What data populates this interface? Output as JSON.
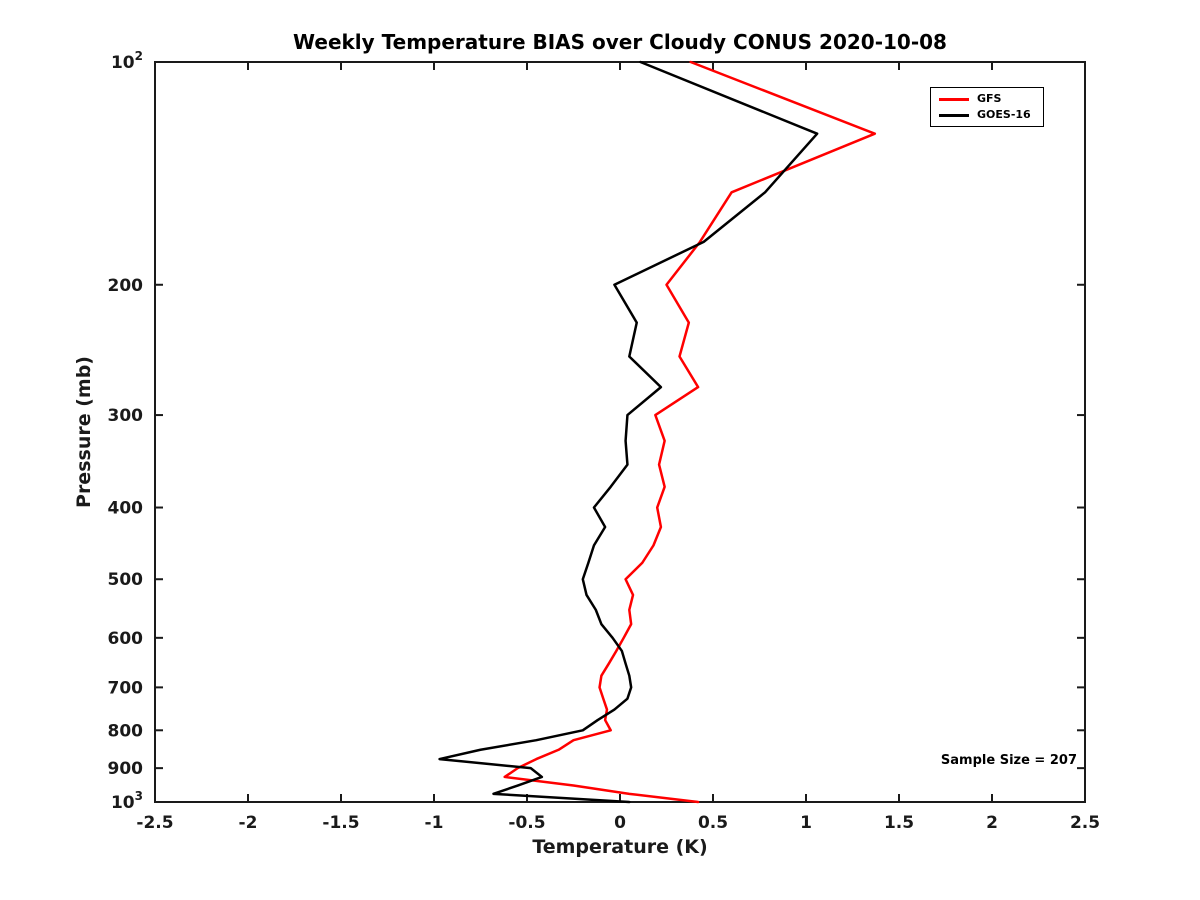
{
  "chart_data": {
    "type": "line",
    "title": "Weekly Temperature BIAS over Cloudy CONUS 2020-10-08",
    "xlabel": "Temperature (K)",
    "ylabel": "Pressure (mb)",
    "annotation": "Sample Size = 207",
    "xlim": [
      -2.5,
      2.5
    ],
    "ylim": [
      100,
      1000
    ],
    "y_scale": "log",
    "y_direction": "increasing-downward",
    "grid": false,
    "legend_position": "top-right-inside",
    "axis_color": "#1a1a1a",
    "line_width": 2.5,
    "x_ticks": [
      "-2.5",
      "-2",
      "-1.5",
      "-1",
      "-0.5",
      "0",
      "0.5",
      "1",
      "1.5",
      "2",
      "2.5"
    ],
    "y_ticks": [
      {
        "value": 100,
        "base": "10",
        "sup": "2"
      },
      {
        "value": 200,
        "label": "200"
      },
      {
        "value": 300,
        "label": "300"
      },
      {
        "value": 400,
        "label": "400"
      },
      {
        "value": 500,
        "label": "500"
      },
      {
        "value": 600,
        "label": "600"
      },
      {
        "value": 700,
        "label": "700"
      },
      {
        "value": 800,
        "label": "800"
      },
      {
        "value": 900,
        "label": "900"
      },
      {
        "value": 1000,
        "base": "10",
        "sup": "3"
      }
    ],
    "pressure_levels": [
      100,
      125,
      150,
      175,
      200,
      225,
      250,
      275,
      300,
      325,
      350,
      375,
      400,
      425,
      450,
      475,
      500,
      525,
      550,
      575,
      600,
      625,
      650,
      675,
      700,
      725,
      750,
      775,
      800,
      825,
      850,
      875,
      900,
      925,
      950,
      975,
      1000
    ],
    "series": [
      {
        "name": "GFS",
        "color": "#ff0000",
        "values": [
          0.38,
          1.37,
          0.6,
          0.43,
          0.25,
          0.37,
          0.32,
          0.42,
          0.19,
          0.24,
          0.21,
          0.24,
          0.2,
          0.22,
          0.18,
          0.12,
          0.03,
          0.07,
          0.05,
          0.06,
          0.02,
          -0.02,
          -0.06,
          -0.1,
          -0.11,
          -0.09,
          -0.07,
          -0.08,
          -0.05,
          -0.25,
          -0.33,
          -0.45,
          -0.55,
          -0.62,
          -0.25,
          0.05,
          0.42
        ]
      },
      {
        "name": "GOES-16",
        "color": "#000000",
        "values": [
          0.11,
          1.06,
          0.78,
          0.45,
          -0.03,
          0.09,
          0.05,
          0.22,
          0.04,
          0.03,
          0.04,
          -0.05,
          -0.14,
          -0.08,
          -0.14,
          -0.17,
          -0.2,
          -0.18,
          -0.13,
          -0.1,
          -0.04,
          0.01,
          0.03,
          0.05,
          0.06,
          0.04,
          -0.03,
          -0.12,
          -0.2,
          -0.45,
          -0.75,
          -0.97,
          -0.48,
          -0.42,
          -0.55,
          -0.68,
          0.05
        ]
      }
    ]
  }
}
